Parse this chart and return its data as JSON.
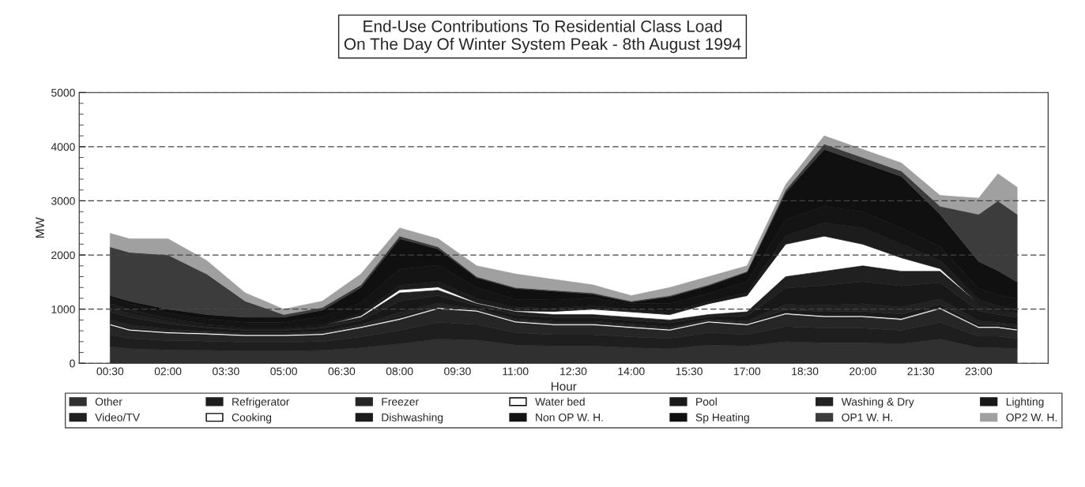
{
  "chart_data": {
    "type": "area",
    "stacked": true,
    "title": "End-Use Contributions To Residential Class Load\nOn The Day Of Winter System Peak - 8th August 1994",
    "xlabel": "Hour",
    "ylabel": "MW",
    "x": [
      0.5,
      1,
      2,
      3,
      4,
      5,
      6,
      7,
      8,
      9,
      10,
      11,
      12,
      13,
      14,
      15,
      16,
      17,
      18,
      19,
      20,
      21,
      22,
      23,
      23.5,
      24
    ],
    "xlim": [
      -0.3,
      24.8
    ],
    "xticks": [
      {
        "value": 0.5,
        "label": "00:30"
      },
      {
        "value": 2,
        "label": "02:00"
      },
      {
        "value": 3.5,
        "label": "03:30"
      },
      {
        "value": 5,
        "label": "05:00"
      },
      {
        "value": 6.5,
        "label": "06:30"
      },
      {
        "value": 8,
        "label": "08:00"
      },
      {
        "value": 9.5,
        "label": "09:30"
      },
      {
        "value": 11,
        "label": "11:00"
      },
      {
        "value": 12.5,
        "label": "12:30"
      },
      {
        "value": 14,
        "label": "14:00"
      },
      {
        "value": 15.5,
        "label": "15:30"
      },
      {
        "value": 17,
        "label": "17:00"
      },
      {
        "value": 18.5,
        "label": "18:30"
      },
      {
        "value": 20,
        "label": "20:00"
      },
      {
        "value": 21.5,
        "label": "21:30"
      },
      {
        "value": 23,
        "label": "23:00"
      }
    ],
    "ylim": [
      0,
      5000
    ],
    "yticks": [
      0,
      1000,
      2000,
      3000,
      4000,
      5000
    ],
    "grid": "y",
    "legend": "bottom",
    "series": [
      {
        "name": "Other",
        "color": "#303030",
        "values": [
          310,
          270,
          250,
          240,
          230,
          230,
          240,
          290,
          360,
          450,
          430,
          340,
          320,
          320,
          290,
          270,
          340,
          320,
          400,
          380,
          380,
          360,
          450,
          290,
          290,
          270
        ]
      },
      {
        "name": "Refrigerator",
        "color": "#1e1e1e",
        "values": [
          220,
          190,
          170,
          170,
          160,
          160,
          160,
          200,
          250,
          310,
          290,
          230,
          210,
          210,
          200,
          190,
          230,
          210,
          280,
          270,
          270,
          250,
          310,
          210,
          210,
          190
        ]
      },
      {
        "name": "Freezer",
        "color": "#262626",
        "values": [
          170,
          140,
          130,
          120,
          110,
          110,
          120,
          160,
          190,
          240,
          230,
          180,
          170,
          170,
          160,
          140,
          180,
          170,
          220,
          200,
          200,
          190,
          240,
          150,
          150,
          140
        ]
      },
      {
        "name": "Water bed",
        "color": "#ffffff",
        "values": [
          30,
          30,
          30,
          30,
          30,
          30,
          30,
          30,
          30,
          30,
          30,
          30,
          30,
          30,
          30,
          30,
          30,
          30,
          30,
          30,
          30,
          30,
          30,
          30,
          30,
          30
        ]
      },
      {
        "name": "Pool",
        "color": "#1a1a1a",
        "values": [
          30,
          30,
          20,
          15,
          10,
          10,
          15,
          15,
          40,
          30,
          10,
          15,
          15,
          15,
          15,
          15,
          10,
          20,
          60,
          70,
          80,
          80,
          60,
          40,
          30,
          30
        ]
      },
      {
        "name": "Washing & Dry",
        "color": "#222222",
        "values": [
          50,
          50,
          30,
          20,
          20,
          20,
          25,
          25,
          70,
          50,
          20,
          30,
          30,
          30,
          30,
          30,
          20,
          35,
          100,
          120,
          140,
          130,
          100,
          60,
          50,
          50
        ]
      },
      {
        "name": "Lighting",
        "color": "#181818",
        "values": [
          140,
          140,
          100,
          60,
          50,
          50,
          60,
          70,
          210,
          140,
          50,
          70,
          70,
          70,
          70,
          70,
          50,
          95,
          300,
          370,
          410,
          390,
          300,
          190,
          140,
          140
        ]
      },
      {
        "name": "Video/TV",
        "color": "#202020",
        "values": [
          100,
          100,
          70,
          45,
          40,
          40,
          50,
          60,
          150,
          100,
          40,
          55,
          55,
          55,
          55,
          55,
          40,
          70,
          210,
          260,
          290,
          270,
          210,
          130,
          100,
          100
        ]
      },
      {
        "name": "Cooking",
        "color": "#ffffff",
        "values": [
          0,
          0,
          0,
          0,
          0,
          0,
          0,
          30,
          60,
          60,
          20,
          20,
          60,
          100,
          100,
          100,
          200,
          300,
          600,
          650,
          400,
          250,
          50,
          0,
          0,
          0
        ]
      },
      {
        "name": "Dishwashing",
        "color": "#1c1c1c",
        "values": [
          50,
          50,
          30,
          20,
          10,
          10,
          10,
          30,
          80,
          100,
          80,
          60,
          60,
          60,
          50,
          50,
          40,
          50,
          150,
          250,
          300,
          250,
          150,
          80,
          60,
          50
        ]
      },
      {
        "name": "Non OP W. H.",
        "color": "#141414",
        "values": [
          100,
          100,
          100,
          100,
          100,
          100,
          150,
          200,
          300,
          300,
          200,
          150,
          150,
          150,
          100,
          150,
          150,
          200,
          300,
          300,
          300,
          300,
          250,
          200,
          200,
          200
        ]
      },
      {
        "name": "Sp Heating",
        "color": "#101010",
        "values": [
          50,
          50,
          70,
          80,
          90,
          90,
          120,
          290,
          560,
          300,
          180,
          200,
          160,
          70,
          30,
          130,
          140,
          180,
          500,
          1050,
          900,
          950,
          600,
          500,
          450,
          300
        ]
      },
      {
        "name": "OP1 W. H.",
        "color": "#3c3c3c",
        "values": [
          900,
          900,
          1000,
          750,
          300,
          50,
          50,
          50,
          50,
          40,
          20,
          20,
          20,
          20,
          20,
          20,
          20,
          20,
          50,
          100,
          100,
          100,
          150,
          870,
          1290,
          1250
        ]
      },
      {
        "name": "OP2 W. H.",
        "color": "#a0a0a0",
        "values": [
          250,
          250,
          300,
          250,
          150,
          100,
          120,
          200,
          150,
          150,
          200,
          250,
          200,
          150,
          100,
          150,
          150,
          100,
          100,
          150,
          150,
          150,
          200,
          300,
          500,
          500
        ]
      }
    ]
  }
}
